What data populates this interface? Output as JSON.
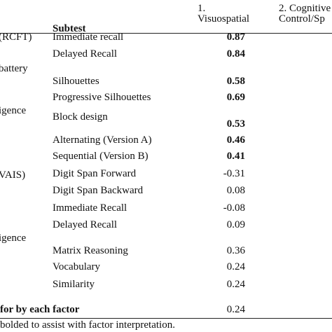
{
  "header": {
    "subtest": "Subtest",
    "factor1": [
      "1.",
      "Visuospatial"
    ],
    "factor2": [
      "2. Cognitive",
      "Control/Sp"
    ]
  },
  "groups": [
    "(RCFT)",
    "battery",
    "igence",
    "VAIS)",
    "igence"
  ],
  "rows": [
    {
      "subtest": "Immediate recall",
      "value": "0.87",
      "bold": true
    },
    {
      "subtest": "Delayed Recall",
      "value": "0.84",
      "bold": true
    },
    {
      "subtest": "Silhouettes",
      "value": "0.58",
      "bold": true
    },
    {
      "subtest": "Progressive Silhouettes",
      "value": "0.69",
      "bold": true
    },
    {
      "subtest": "Block design",
      "value": "0.53",
      "bold": true
    },
    {
      "subtest": "Alternating (Version A)",
      "value": "0.46",
      "bold": true
    },
    {
      "subtest": "Sequential (Version B)",
      "value": "0.41",
      "bold": true
    },
    {
      "subtest": "Digit Span Forward",
      "value": "-0.31",
      "bold": false
    },
    {
      "subtest": "Digit Span Backward",
      "value": "0.08",
      "bold": false
    },
    {
      "subtest": "Immediate Recall",
      "value": "-0.08",
      "bold": false
    },
    {
      "subtest": "Delayed Recall",
      "value": "0.09",
      "bold": false
    },
    {
      "subtest": "Matrix Reasoning",
      "value": "0.36",
      "bold": false
    },
    {
      "subtest": "Vocabulary",
      "value": "0.24",
      "bold": false
    },
    {
      "subtest": "Similarity",
      "value": "0.24",
      "bold": false
    }
  ],
  "variance": {
    "label": "for by each factor",
    "value": "0.24"
  },
  "footnote": "bolded to assist with factor interpretation."
}
